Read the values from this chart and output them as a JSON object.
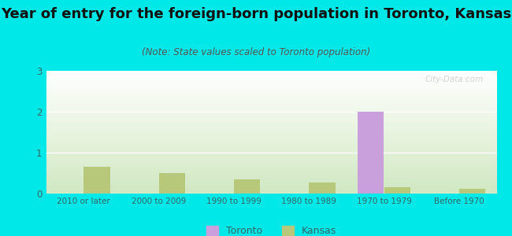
{
  "title": "Year of entry for the foreign-born population in Toronto, Kansas",
  "subtitle": "(Note: State values scaled to Toronto population)",
  "categories": [
    "2010 or later",
    "2000 to 2009",
    "1990 to 1999",
    "1980 to 1989",
    "1970 to 1979",
    "Before 1970"
  ],
  "toronto_values": [
    0,
    0,
    0,
    0,
    2,
    0
  ],
  "kansas_values": [
    0.65,
    0.5,
    0.35,
    0.27,
    0.15,
    0.12
  ],
  "toronto_color": "#c9a0dc",
  "kansas_color": "#b8c87a",
  "background_color": "#00e8e8",
  "ylim": [
    0,
    3
  ],
  "yticks": [
    0,
    1,
    2,
    3
  ],
  "bar_width": 0.35,
  "legend_toronto": "Toronto",
  "legend_kansas": "Kansas",
  "title_fontsize": 13,
  "subtitle_fontsize": 8.5,
  "watermark": "City-Data.com"
}
